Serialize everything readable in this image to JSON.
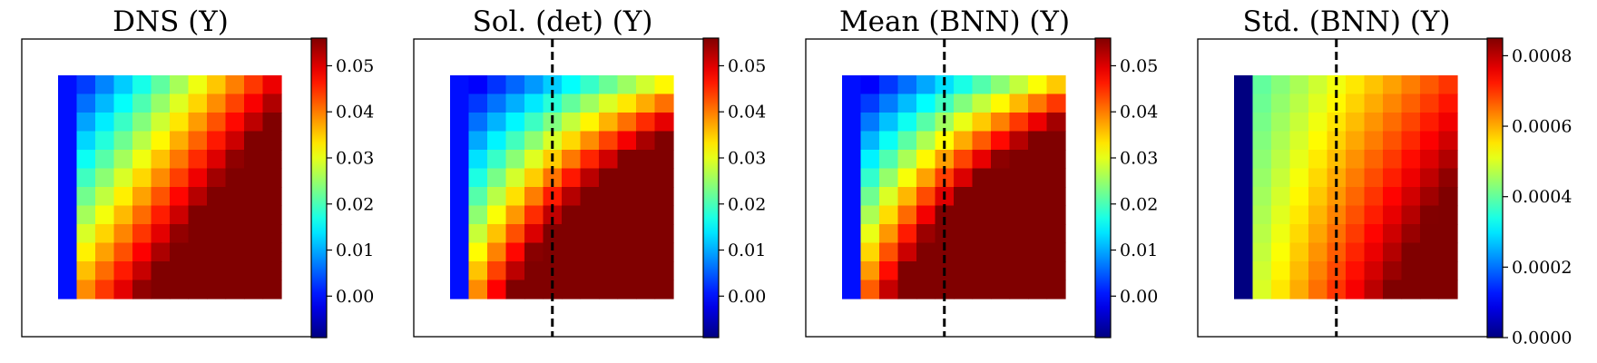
{
  "chart_data": [
    {
      "type": "heatmap",
      "title": "DNS (Y)",
      "grid_size": [
        12,
        12
      ],
      "model": {
        "z00": 0.003,
        "zx": 0.046,
        "zy": 0.036,
        "zxy": 0.007,
        "left_column_value": 0.0
      },
      "colorbar": {
        "min": -0.009,
        "max": 0.056,
        "ticks": [
          "0.00",
          "0.01",
          "0.02",
          "0.03",
          "0.04",
          "0.05"
        ],
        "tick_values": [
          0.0,
          0.01,
          0.02,
          0.03,
          0.04,
          0.05
        ]
      },
      "dashed_line": false
    },
    {
      "type": "heatmap",
      "title": "Sol. (det) (Y)",
      "grid_size": [
        12,
        12
      ],
      "model": {
        "z00": -0.001,
        "zx": 0.033,
        "zy": 0.04,
        "zxy": 0.056,
        "left_column_value": 0.0
      },
      "colorbar": {
        "min": -0.009,
        "max": 0.056,
        "ticks": [
          "0.00",
          "0.01",
          "0.02",
          "0.03",
          "0.04",
          "0.05"
        ],
        "tick_values": [
          0.0,
          0.01,
          0.02,
          0.03,
          0.04,
          0.05
        ]
      },
      "dashed_line": true,
      "dashed_line_col": 5.5
    },
    {
      "type": "heatmap",
      "title": "Mean (BNN) (Y)",
      "grid_size": [
        12,
        12
      ],
      "model": {
        "z00": -0.001,
        "zx": 0.036,
        "zy": 0.043,
        "zxy": 0.06,
        "left_column_value": 0.0
      },
      "colorbar": {
        "min": -0.009,
        "max": 0.056,
        "ticks": [
          "0.00",
          "0.01",
          "0.02",
          "0.03",
          "0.04",
          "0.05"
        ],
        "tick_values": [
          0.0,
          0.01,
          0.02,
          0.03,
          0.04,
          0.05
        ]
      },
      "dashed_line": true,
      "dashed_line_col": 5.5
    },
    {
      "type": "heatmap",
      "title": "Std. (BNN) (Y)",
      "grid_size": [
        12,
        12
      ],
      "model": {
        "z00": 0.0004,
        "zx": 0.0003,
        "zy": 0.0001,
        "zxy": 0.0002,
        "left_column_value": 0.0
      },
      "colorbar": {
        "min": 0.0,
        "max": 0.00085,
        "ticks": [
          "0.0000",
          "0.0002",
          "0.0004",
          "0.0006",
          "0.0008"
        ],
        "tick_values": [
          0.0,
          0.0002,
          0.0004,
          0.0006,
          0.0008
        ]
      },
      "dashed_line": true,
      "dashed_line_col": 5.5
    }
  ]
}
